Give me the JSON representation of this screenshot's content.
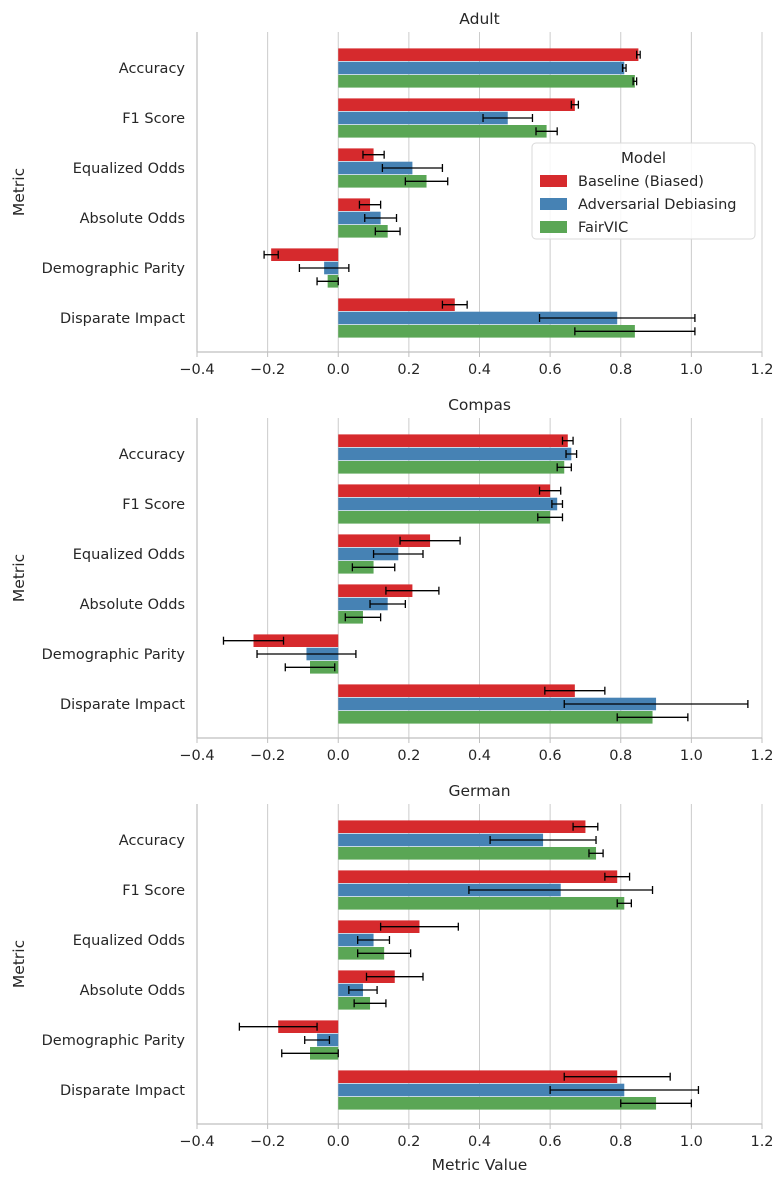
{
  "legend": {
    "title": "Model",
    "entries": [
      "Baseline (Biased)",
      "Adversarial Debiasing",
      "FairVIC"
    ],
    "placement": "right, upper-middle of first panel"
  },
  "colors": {
    "Baseline (Biased)": "#d62a2d",
    "Adversarial Debiasing": "#4682b4",
    "FairVIC": "#5aa655",
    "grid": "#cccccc",
    "axis": "#bfbfbf",
    "error_bar": "#000000"
  },
  "chart_data": [
    {
      "type": "bar",
      "orientation": "horizontal",
      "title": "Adult",
      "ylabel": "Metric",
      "xlabel": "",
      "xlim": [
        -0.4,
        1.2
      ],
      "xticks": [
        "−0.4",
        "−0.2",
        "0.0",
        "0.2",
        "0.4",
        "0.6",
        "0.8",
        "1.0",
        "1.2"
      ],
      "grid": "x",
      "categories": [
        "Accuracy",
        "F1 Score",
        "Equalized Odds",
        "Absolute Odds",
        "Demographic Parity",
        "Disparate Impact"
      ],
      "series": [
        {
          "name": "Baseline (Biased)",
          "values": [
            0.85,
            0.67,
            0.1,
            0.09,
            -0.19,
            0.33
          ],
          "errors": [
            0.005,
            0.01,
            0.03,
            0.03,
            0.02,
            0.035
          ]
        },
        {
          "name": "Adversarial Debiasing",
          "values": [
            0.81,
            0.48,
            0.21,
            0.12,
            -0.04,
            0.79
          ],
          "errors": [
            0.005,
            0.07,
            0.085,
            0.045,
            0.07,
            0.22
          ]
        },
        {
          "name": "FairVIC",
          "values": [
            0.84,
            0.59,
            0.25,
            0.14,
            -0.03,
            0.84
          ],
          "errors": [
            0.005,
            0.03,
            0.06,
            0.035,
            0.03,
            0.17
          ]
        }
      ]
    },
    {
      "type": "bar",
      "orientation": "horizontal",
      "title": "Compas",
      "ylabel": "Metric",
      "xlabel": "",
      "xlim": [
        -0.4,
        1.2
      ],
      "xticks": [
        "−0.4",
        "−0.2",
        "0.0",
        "0.2",
        "0.4",
        "0.6",
        "0.8",
        "1.0",
        "1.2"
      ],
      "grid": "x",
      "categories": [
        "Accuracy",
        "F1 Score",
        "Equalized Odds",
        "Absolute Odds",
        "Demographic Parity",
        "Disparate Impact"
      ],
      "series": [
        {
          "name": "Baseline (Biased)",
          "values": [
            0.65,
            0.6,
            0.26,
            0.21,
            -0.24,
            0.67
          ],
          "errors": [
            0.015,
            0.03,
            0.085,
            0.075,
            0.085,
            0.085
          ]
        },
        {
          "name": "Adversarial Debiasing",
          "values": [
            0.66,
            0.62,
            0.17,
            0.14,
            -0.09,
            0.9
          ],
          "errors": [
            0.015,
            0.015,
            0.07,
            0.05,
            0.14,
            0.26
          ]
        },
        {
          "name": "FairVIC",
          "values": [
            0.64,
            0.6,
            0.1,
            0.07,
            -0.08,
            0.89
          ],
          "errors": [
            0.02,
            0.035,
            0.06,
            0.05,
            0.07,
            0.1
          ]
        }
      ]
    },
    {
      "type": "bar",
      "orientation": "horizontal",
      "title": "German",
      "ylabel": "Metric",
      "xlabel": "Metric Value",
      "xlim": [
        -0.4,
        1.2
      ],
      "xticks": [
        "−0.4",
        "−0.2",
        "0.0",
        "0.2",
        "0.4",
        "0.6",
        "0.8",
        "1.0",
        "1.2"
      ],
      "grid": "x",
      "categories": [
        "Accuracy",
        "F1 Score",
        "Equalized Odds",
        "Absolute Odds",
        "Demographic Parity",
        "Disparate Impact"
      ],
      "series": [
        {
          "name": "Baseline (Biased)",
          "values": [
            0.7,
            0.79,
            0.23,
            0.16,
            -0.17,
            0.79
          ],
          "errors": [
            0.035,
            0.035,
            0.11,
            0.08,
            0.11,
            0.15
          ]
        },
        {
          "name": "Adversarial Debiasing",
          "values": [
            0.58,
            0.63,
            0.1,
            0.07,
            -0.06,
            0.81
          ],
          "errors": [
            0.15,
            0.26,
            0.045,
            0.04,
            0.035,
            0.21
          ]
        },
        {
          "name": "FairVIC",
          "values": [
            0.73,
            0.81,
            0.13,
            0.09,
            -0.08,
            0.9
          ],
          "errors": [
            0.02,
            0.02,
            0.075,
            0.045,
            0.08,
            0.1
          ]
        }
      ]
    }
  ]
}
